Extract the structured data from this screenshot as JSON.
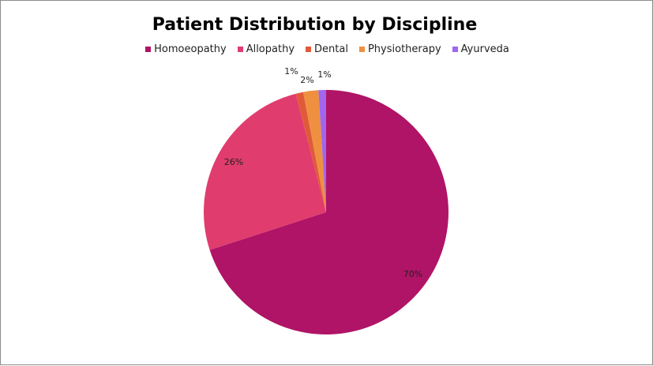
{
  "chart_data": {
    "type": "pie",
    "title": "Patient Distribution by Discipline",
    "legend_position": "top",
    "slices": [
      {
        "name": "Homoeopathy",
        "value": 70,
        "label": "70%",
        "color": "#b01466"
      },
      {
        "name": "Allopathy",
        "value": 26,
        "label": "26%",
        "color": "#e03c6e"
      },
      {
        "name": "Dental",
        "value": 1,
        "label": "1%",
        "color": "#e05a3a"
      },
      {
        "name": "Physiotherapy",
        "value": 2,
        "label": "2%",
        "color": "#ee9040"
      },
      {
        "name": "Ayurveda",
        "value": 1,
        "label": "1%",
        "color": "#a066ee"
      }
    ]
  }
}
